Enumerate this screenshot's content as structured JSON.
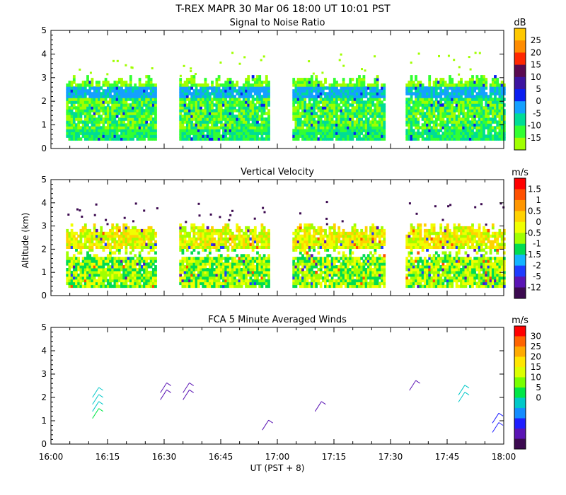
{
  "header": {
    "title": "T-REX   MAPR 30 Mar 06   18:00 UT   10:01   PST"
  },
  "x_axis": {
    "ticks": [
      "16:00",
      "16:15",
      "16:30",
      "16:45",
      "17:00",
      "17:15",
      "17:30",
      "17:45",
      "18:00"
    ],
    "label": "UT  (PST + 8)"
  },
  "y_axis": {
    "label": "Altitude  (km)",
    "ticks": [
      "0",
      "1",
      "2",
      "3",
      "4",
      "5"
    ]
  },
  "chart_data": [
    {
      "id": "snr",
      "type": "heatmap",
      "title": "Signal to Noise Ratio",
      "unit": "dB",
      "xrange": [
        0,
        120
      ],
      "ylim": [
        0,
        5
      ],
      "data_segments_minutes": [
        [
          4,
          28
        ],
        [
          34,
          58
        ],
        [
          64,
          88
        ],
        [
          94,
          120
        ]
      ],
      "colorbar": {
        "labels": [
          "25",
          "20",
          "15",
          "10",
          "5",
          "0",
          "-5",
          "-10",
          "-15"
        ],
        "colors": [
          "#ffc800",
          "#ff8c00",
          "#ff2800",
          "#5a0a50",
          "#3c14a0",
          "#0a1ef0",
          "#14a0ff",
          "#00dc96",
          "#32ff32",
          "#a0ff00"
        ]
      }
    },
    {
      "id": "velocity",
      "type": "heatmap",
      "title": "Vertical Velocity",
      "unit": "m/s",
      "xrange": [
        0,
        120
      ],
      "ylim": [
        0,
        5
      ],
      "data_segments_minutes": [
        [
          4,
          28
        ],
        [
          34,
          58
        ],
        [
          64,
          88
        ],
        [
          94,
          120
        ]
      ],
      "colorbar": {
        "labels": [
          "1.5",
          "1",
          "0.5",
          "0",
          "-0.5",
          "-1",
          "-1.5",
          "-2",
          "-5",
          "-12"
        ],
        "colors": [
          "#ff0000",
          "#ff5000",
          "#ff9600",
          "#ffd200",
          "#f0ff00",
          "#a0ff00",
          "#00dc50",
          "#14b4ff",
          "#1e3cff",
          "#5a14b4",
          "#3c0a50"
        ]
      }
    },
    {
      "id": "winds",
      "type": "scatter",
      "title": "FCA 5 Minute Averaged Winds",
      "unit": "m/s",
      "xrange": [
        0,
        120
      ],
      "ylim": [
        0,
        5
      ],
      "colorbar": {
        "labels": [
          "30",
          "25",
          "20",
          "15",
          "10",
          "5",
          "0"
        ],
        "colors": [
          "#ff0000",
          "#ff6400",
          "#ffaa00",
          "#ffe600",
          "#dcff00",
          "#78ff00",
          "#00e646",
          "#00c8c8",
          "#148cff",
          "#1e1eff",
          "#5a14b4",
          "#3c0a50"
        ]
      },
      "barbs": [
        {
          "t": 11,
          "alt": 2.0,
          "speed": 10
        },
        {
          "t": 11,
          "alt": 1.7,
          "speed": 10
        },
        {
          "t": 11,
          "alt": 1.4,
          "speed": 12
        },
        {
          "t": 11,
          "alt": 1.1,
          "speed": 14
        },
        {
          "t": 29,
          "alt": 2.2,
          "speed": 3
        },
        {
          "t": 29,
          "alt": 1.9,
          "speed": 3
        },
        {
          "t": 35,
          "alt": 2.2,
          "speed": 3
        },
        {
          "t": 35,
          "alt": 1.9,
          "speed": 3
        },
        {
          "t": 56,
          "alt": 0.6,
          "speed": 4
        },
        {
          "t": 70,
          "alt": 1.4,
          "speed": 3
        },
        {
          "t": 95,
          "alt": 2.3,
          "speed": 3
        },
        {
          "t": 108,
          "alt": 2.1,
          "speed": 10
        },
        {
          "t": 108,
          "alt": 1.8,
          "speed": 10
        },
        {
          "t": 117,
          "alt": 0.9,
          "speed": 5
        },
        {
          "t": 117,
          "alt": 0.5,
          "speed": 5
        }
      ]
    }
  ]
}
